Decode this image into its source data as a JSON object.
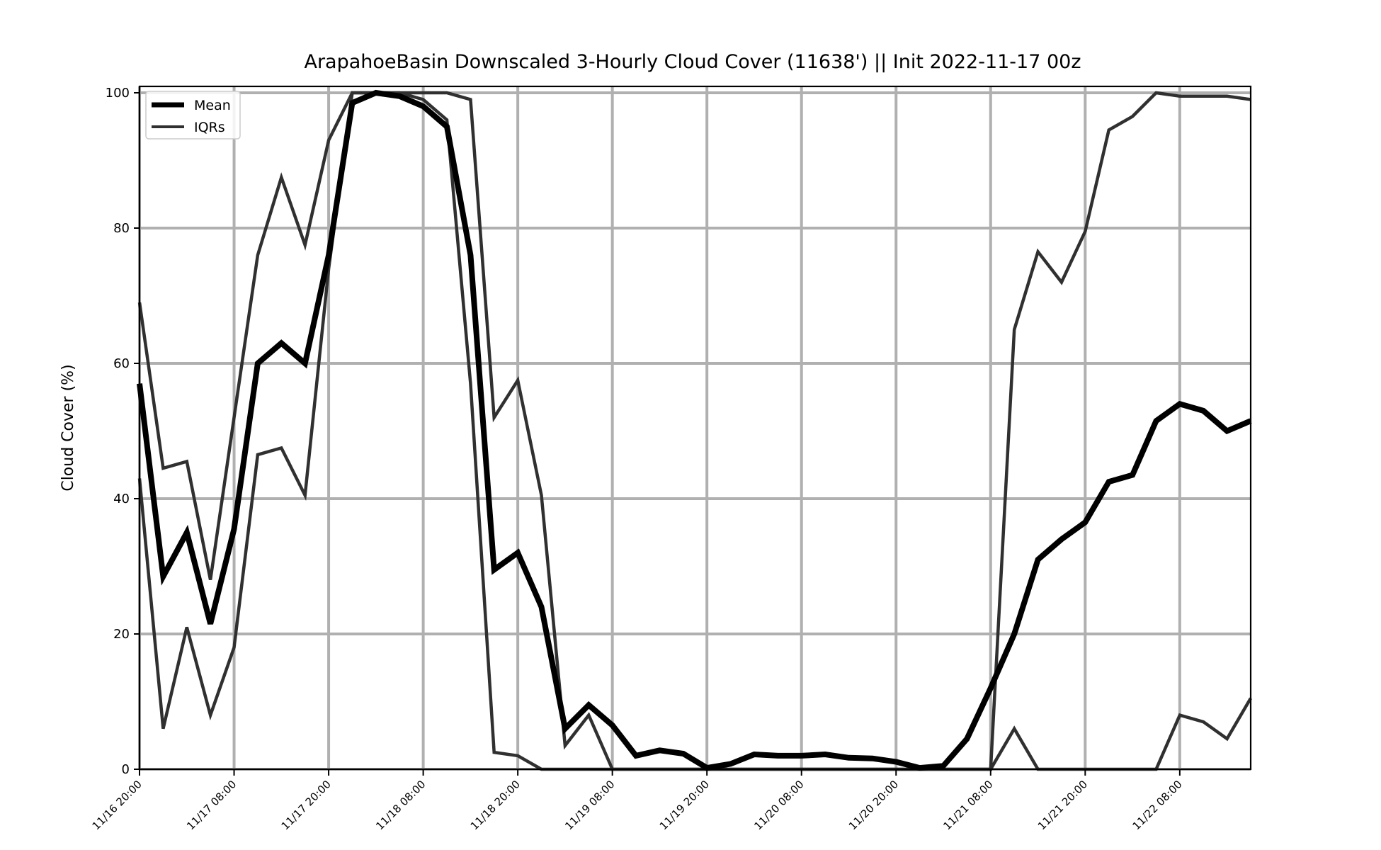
{
  "chart_data": {
    "type": "line",
    "title": "ArapahoeBasin Downscaled 3-Hourly Cloud Cover (11638') || Init 2022-11-17 00z",
    "xlabel": "",
    "ylabel": "Cloud Cover (%)",
    "ylim": [
      0,
      100
    ],
    "yticks": [
      0,
      20,
      40,
      60,
      80,
      100
    ],
    "x": [
      "11/16 20:00",
      "11/16 23:00",
      "11/17 02:00",
      "11/17 05:00",
      "11/17 08:00",
      "11/17 11:00",
      "11/17 14:00",
      "11/17 17:00",
      "11/17 20:00",
      "11/17 23:00",
      "11/18 02:00",
      "11/18 05:00",
      "11/18 08:00",
      "11/18 11:00",
      "11/18 14:00",
      "11/18 17:00",
      "11/18 20:00",
      "11/18 23:00",
      "11/19 02:00",
      "11/19 05:00",
      "11/19 08:00",
      "11/19 11:00",
      "11/19 14:00",
      "11/19 17:00",
      "11/19 20:00",
      "11/19 23:00",
      "11/20 02:00",
      "11/20 05:00",
      "11/20 08:00",
      "11/20 11:00",
      "11/20 14:00",
      "11/20 17:00",
      "11/20 20:00",
      "11/20 23:00",
      "11/21 02:00",
      "11/21 05:00",
      "11/21 08:00",
      "11/21 11:00",
      "11/21 14:00",
      "11/21 17:00",
      "11/21 20:00",
      "11/21 23:00",
      "11/22 02:00",
      "11/22 05:00",
      "11/22 08:00",
      "11/22 11:00",
      "11/22 14:00",
      "11/22 17:00"
    ],
    "xticks": [
      "11/16 20:00",
      "11/17 08:00",
      "11/17 20:00",
      "11/18 08:00",
      "11/18 20:00",
      "11/19 08:00",
      "11/19 20:00",
      "11/20 08:00",
      "11/20 20:00",
      "11/21 08:00",
      "11/21 20:00",
      "11/22 08:00"
    ],
    "grid": true,
    "legend_position": "upper-left",
    "series": [
      {
        "name": "Mean",
        "color": "#000000",
        "values": [
          57,
          28.5,
          35,
          21.5,
          35.5,
          60,
          63,
          60,
          76,
          98.5,
          100,
          99.5,
          98,
          95,
          76,
          29.5,
          32,
          24,
          6,
          9.5,
          6.5,
          2,
          2.8,
          2.3,
          0.2,
          0.8,
          2.2,
          2,
          2,
          2.2,
          1.7,
          1.6,
          1.1,
          0.2,
          0.5,
          4.5,
          12,
          20,
          31,
          34,
          36.5,
          42.5,
          43.5,
          51.5,
          54,
          53,
          50,
          51.5
        ]
      },
      {
        "name": "IQRs",
        "color": "#303030",
        "values": [
          69,
          44.5,
          45.5,
          28,
          52,
          76,
          87.5,
          77.5,
          93,
          100,
          100,
          100,
          100,
          100,
          99,
          52,
          57.5,
          40.5,
          3.5,
          8,
          0,
          0,
          0,
          0,
          0,
          0,
          0,
          0,
          0,
          0,
          0,
          0,
          0,
          0,
          0,
          0,
          0,
          65,
          76.5,
          72,
          79.5,
          94.5,
          96.5,
          100,
          99.5,
          99.5,
          99.5,
          99
        ]
      },
      {
        "name": "",
        "color": "#303030",
        "values": [
          43,
          6,
          21,
          8,
          18,
          46.5,
          47.5,
          40.5,
          74,
          100,
          100,
          100,
          99,
          96,
          57,
          2.5,
          2,
          0,
          0,
          0,
          0,
          0,
          0,
          0,
          0,
          0,
          0,
          0,
          0,
          0,
          0,
          0,
          0,
          0,
          0,
          0,
          0,
          6,
          0,
          0,
          0,
          0,
          0,
          0,
          8,
          7,
          4.5,
          10.5
        ]
      }
    ]
  }
}
